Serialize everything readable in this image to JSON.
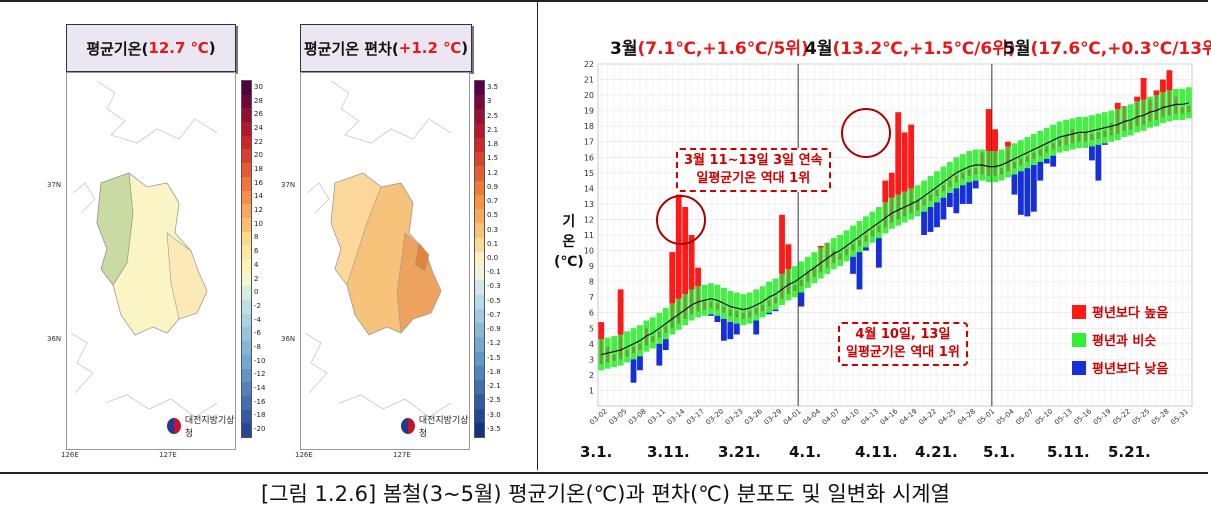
{
  "maps": {
    "left": {
      "title_prefix": "평균기온(",
      "title_value": "12.7 ℃",
      "title_suffix": ")",
      "colorbar_ticks": [
        "30",
        "28",
        "26",
        "24",
        "22",
        "20",
        "18",
        "16",
        "14",
        "12",
        "10",
        "8",
        "6",
        "4",
        "2",
        "0",
        "-2",
        "-4",
        "-6",
        "-8",
        "-10",
        "-12",
        "-14",
        "-16",
        "-18",
        "-20"
      ],
      "lat_labels": [
        "37N",
        "36N"
      ],
      "lon_labels": [
        "126E",
        "127E"
      ],
      "logo_text": "대전지방기상청"
    },
    "right": {
      "title_prefix": "평균기온 편차(",
      "title_value": "+1.2 ℃",
      "title_suffix": ")",
      "colorbar_ticks": [
        "3.5",
        "3",
        "2.5",
        "2.1",
        "1.8",
        "1.5",
        "1.2",
        "0.9",
        "0.7",
        "0.5",
        "0.3",
        "0.1",
        "0.0",
        "-0.1",
        "-0.3",
        "-0.5",
        "-0.7",
        "-0.9",
        "-1.2",
        "-1.5",
        "-1.8",
        "-2.1",
        "-2.5",
        "-3.0",
        "-3.5"
      ],
      "lat_labels": [
        "37N",
        "36N"
      ],
      "lon_labels": [
        "126E",
        "127E"
      ],
      "logo_text": "대전지방기상청"
    }
  },
  "month_headers": [
    {
      "month": "3월",
      "stats": "(7.1℃,+1.6℃/5위)"
    },
    {
      "month": "4월",
      "stats": "(13.2℃,+1.5℃/6위)"
    },
    {
      "month": "5월",
      "stats": "(17.6℃,+0.3℃/13위)"
    }
  ],
  "y_axis_label": [
    "기",
    "온",
    "(℃)"
  ],
  "callouts": {
    "march": [
      "3월 11~13일 3일 연속",
      "일평균기온 역대 1위"
    ],
    "april": [
      "4월 10일, 13일",
      "일평균기온 역대 1위"
    ]
  },
  "legend": [
    {
      "label": "평년보다 높음",
      "color": "#ff1a1a"
    },
    {
      "label": "평년과 비슷",
      "color": "#33ee33"
    },
    {
      "label": "평년보다 낮음",
      "color": "#1530d8"
    }
  ],
  "date_labels": [
    "3.1.",
    "3.11.",
    "3.21.",
    "4.1.",
    "4.11.",
    "4.21.",
    "5.1.",
    "5.11.",
    "5.21."
  ],
  "caption": "[그림 1.2.6] 봄철(3~5월) 평균기온(℃)과 편차(℃) 분포도 및 일변화 시계열",
  "chart_data": {
    "type": "bar",
    "ylim": [
      0,
      22
    ],
    "yticks": [
      1,
      2,
      3,
      4,
      5,
      6,
      7,
      8,
      9,
      10,
      11,
      12,
      13,
      14,
      15,
      16,
      17,
      18,
      19,
      20,
      21,
      22
    ],
    "x_tick_labels": [
      "03-02",
      "03-05",
      "03-08",
      "03-11",
      "03-14",
      "03-17",
      "03-20",
      "03-23",
      "03-26",
      "03-29",
      "04-01",
      "04-04",
      "04-07",
      "04-10",
      "04-13",
      "04-16",
      "04-19",
      "04-22",
      "04-25",
      "04-28",
      "05-01",
      "05-04",
      "05-07",
      "05-10",
      "05-13",
      "05-16",
      "05-19",
      "05-22",
      "05-25",
      "05-28",
      "05-31"
    ],
    "month_dividers": [
      "04-01",
      "05-01"
    ],
    "normal_mean": [
      3.3,
      3.4,
      3.5,
      3.6,
      3.8,
      4.0,
      4.2,
      4.5,
      4.7,
      5.0,
      5.3,
      5.6,
      5.9,
      6.2,
      6.5,
      6.7,
      6.8,
      6.9,
      6.8,
      6.6,
      6.4,
      6.3,
      6.2,
      6.3,
      6.5,
      6.7,
      7.0,
      7.2,
      7.5,
      7.8,
      8.0,
      8.3,
      8.6,
      8.9,
      9.2,
      9.5,
      9.8,
      10.0,
      10.3,
      10.6,
      10.9,
      11.2,
      11.5,
      11.8,
      12.1,
      12.4,
      12.6,
      12.8,
      13.0,
      13.2,
      13.5,
      13.8,
      14.1,
      14.4,
      14.7,
      15.0,
      15.2,
      15.4,
      15.5,
      15.5,
      15.4,
      15.4,
      15.5,
      15.7,
      15.9,
      16.1,
      16.3,
      16.5,
      16.7,
      16.9,
      17.1,
      17.3,
      17.4,
      17.5,
      17.6,
      17.6,
      17.7,
      17.8,
      17.9,
      18.0,
      18.1,
      18.3,
      18.4,
      18.6,
      18.7,
      18.9,
      19.0,
      19.2,
      19.3,
      19.4,
      19.4,
      19.5
    ],
    "normal_band": 1.0,
    "daily_mean": [
      5.4,
      3.8,
      2.5,
      7.5,
      3.0,
      1.5,
      2.3,
      5.0,
      4.5,
      2.6,
      3.6,
      9.9,
      13.6,
      12.8,
      11.0,
      8.9,
      6.7,
      5.8,
      5.4,
      4.2,
      4.3,
      4.6,
      5.2,
      5.5,
      4.6,
      6.2,
      5.9,
      6.1,
      12.3,
      10.4,
      7.2,
      6.4,
      8.7,
      8.9,
      10.3,
      10.5,
      10.0,
      9.6,
      9.5,
      8.5,
      7.5,
      10.0,
      10.5,
      8.9,
      14.5,
      15.0,
      18.9,
      17.6,
      18.1,
      13.2,
      11.0,
      11.2,
      11.5,
      12.0,
      12.8,
      12.4,
      13.0,
      13.0,
      14.0,
      16.3,
      19.1,
      17.8,
      15.3,
      17.0,
      13.6,
      12.3,
      12.2,
      12.5,
      14.5,
      15.6,
      15.4,
      16.3,
      17.4,
      17.8,
      17.5,
      17.6,
      15.8,
      14.5,
      16.8,
      18.2,
      19.5,
      19.3,
      18.3,
      19.9,
      21.1,
      19.7,
      20.3,
      21.0,
      21.6,
      19.9,
      19.0,
      19.3
    ]
  }
}
